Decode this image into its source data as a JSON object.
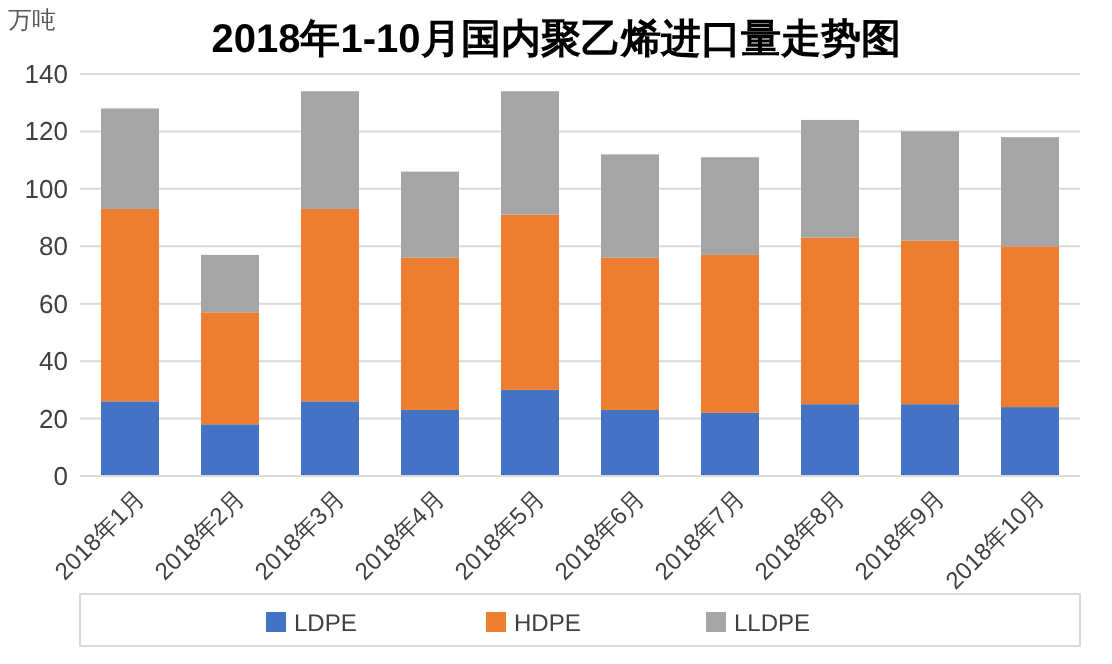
{
  "chart_data": {
    "type": "bar",
    "stacked": true,
    "title": "2018年1-10月国内聚乙烯进口量走势图",
    "ylabel": "万吨",
    "categories": [
      "2018年1月",
      "2018年2月",
      "2018年3月",
      "2018年4月",
      "2018年5月",
      "2018年6月",
      "2018年7月",
      "2018年8月",
      "2018年9月",
      "2018年10月"
    ],
    "series": [
      {
        "name": "LDPE",
        "color": "#4472c4",
        "values": [
          26,
          18,
          26,
          23,
          30,
          23,
          22,
          25,
          25,
          24
        ]
      },
      {
        "name": "HDPE",
        "color": "#ed7d31",
        "values": [
          67,
          39,
          67,
          53,
          61,
          53,
          55,
          58,
          57,
          56
        ]
      },
      {
        "name": "LLDPE",
        "color": "#a5a5a5",
        "values": [
          35,
          20,
          41,
          30,
          43,
          36,
          34,
          41,
          38,
          38
        ]
      }
    ],
    "ylim": [
      0,
      140
    ],
    "yticks": [
      0,
      20,
      40,
      60,
      80,
      100,
      120,
      140
    ],
    "grid": "y",
    "legend": "bottom"
  }
}
